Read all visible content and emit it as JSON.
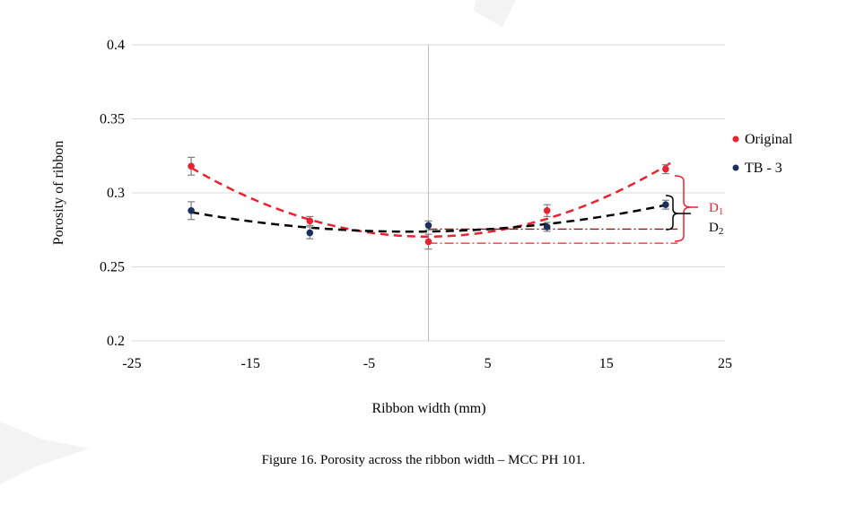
{
  "chart_data": {
    "type": "scatter",
    "xlabel": "Ribbon width (mm)",
    "ylabel": "Porosity of ribbon",
    "xlim": [
      -25,
      25
    ],
    "ylim": [
      0.2,
      0.4
    ],
    "xticks": [
      -25,
      -15,
      -5,
      5,
      15,
      25
    ],
    "yticks": [
      0.2,
      0.25,
      0.3,
      0.35,
      0.4
    ],
    "ytick_labels": [
      "0.2",
      "0.25",
      "0.3",
      "0.35",
      "0.4"
    ],
    "grid": "horizontal",
    "legend_position": "right",
    "series": [
      {
        "name": "Original",
        "color": "#e8222e",
        "x": [
          -20,
          -10,
          0,
          10,
          20
        ],
        "y": [
          0.318,
          0.281,
          0.267,
          0.288,
          0.316
        ],
        "err": [
          0.006,
          0.003,
          0.005,
          0.004,
          0.003
        ],
        "trendline": "polynomial"
      },
      {
        "name": "TB - 3",
        "color": "#1b2f5e",
        "x": [
          -20,
          -10,
          0,
          10,
          20
        ],
        "y": [
          0.288,
          0.273,
          0.278,
          0.277,
          0.292
        ],
        "err": [
          0.006,
          0.004,
          0.003,
          0.003,
          0.003
        ],
        "trendline": "polynomial"
      }
    ],
    "annotations": [
      {
        "label": "D",
        "subscript": "1",
        "color": "#e8222e"
      },
      {
        "label": "D",
        "subscript": "2",
        "color": "#000000"
      }
    ],
    "reference_lines": [
      {
        "y": 0.2755,
        "from_x": 0,
        "to_x": 21,
        "color": "#8b1a1a",
        "style": "dash-dot"
      },
      {
        "y": 0.266,
        "from_x": 0,
        "to_x": 21,
        "color": "#e8222e",
        "style": "dash-dot"
      }
    ]
  },
  "caption": "Figure 16. Porosity across the ribbon width – MCC PH 101."
}
